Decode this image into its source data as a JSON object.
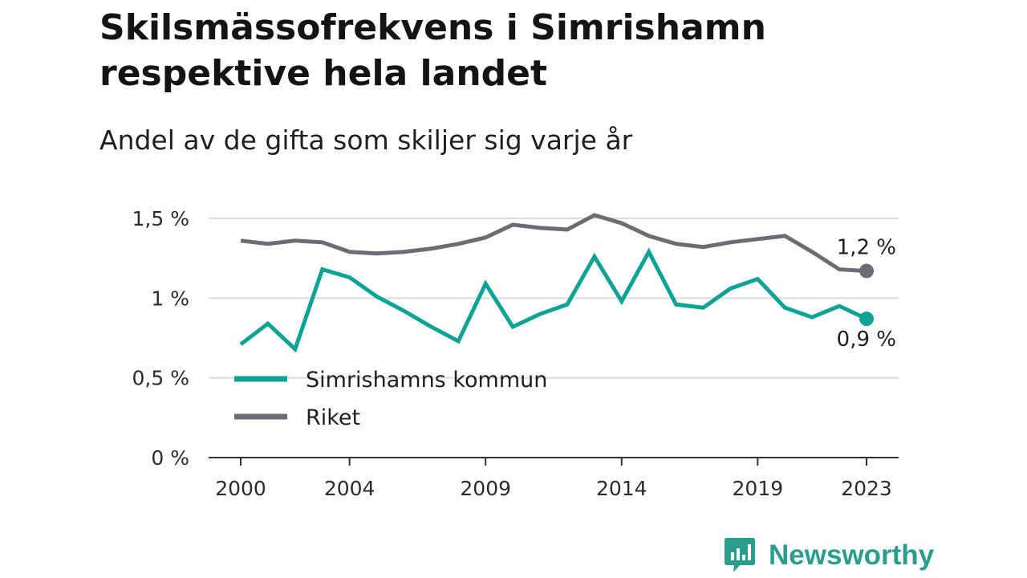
{
  "brand": {
    "name": "Newsworthy",
    "color": "#2a9d8f"
  },
  "chart_data": {
    "type": "line",
    "title": "Skilsmässofrekvens i Simrishamn respektive hela landet",
    "subtitle": "Andel av de gifta som skiljer sig varje år",
    "xlabel": "",
    "ylabel": "",
    "x": [
      2000,
      2001,
      2002,
      2003,
      2004,
      2005,
      2006,
      2007,
      2008,
      2009,
      2010,
      2011,
      2012,
      2013,
      2014,
      2015,
      2016,
      2017,
      2018,
      2019,
      2020,
      2021,
      2022,
      2023
    ],
    "x_ticks": [
      2000,
      2004,
      2009,
      2014,
      2019,
      2023
    ],
    "y_ticks": [
      {
        "value": 0,
        "label": "0 %"
      },
      {
        "value": 0.5,
        "label": "0,5 %"
      },
      {
        "value": 1,
        "label": "1 %"
      },
      {
        "value": 1.5,
        "label": "1,5 %"
      }
    ],
    "ylim": [
      0,
      1.5
    ],
    "grid": true,
    "legend_position": "bottom-left",
    "series": [
      {
        "name": "Simrishamns kommun",
        "color": "#0fa396",
        "end_label": "0,9 %",
        "values": [
          0.71,
          0.84,
          0.68,
          1.18,
          1.13,
          1.01,
          0.92,
          0.82,
          0.73,
          1.09,
          0.82,
          0.9,
          0.96,
          1.26,
          0.98,
          1.29,
          0.96,
          0.94,
          1.06,
          1.12,
          0.94,
          0.88,
          0.95,
          0.87
        ]
      },
      {
        "name": "Riket",
        "color": "#6d6c75",
        "end_label": "1,2 %",
        "values": [
          1.36,
          1.34,
          1.36,
          1.35,
          1.29,
          1.28,
          1.29,
          1.31,
          1.34,
          1.38,
          1.46,
          1.44,
          1.43,
          1.52,
          1.47,
          1.39,
          1.34,
          1.32,
          1.35,
          1.37,
          1.39,
          1.29,
          1.18,
          1.17
        ]
      }
    ]
  }
}
